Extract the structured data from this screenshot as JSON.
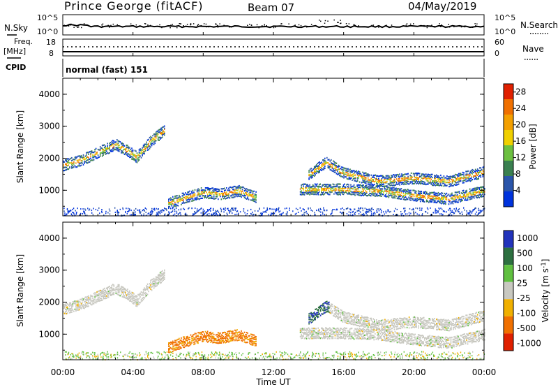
{
  "header": {
    "station": "Prince George (fitACF)",
    "beam": "Beam 07",
    "date": "04/May/2019"
  },
  "noise_panel": {
    "left_label": "N.Sky",
    "left_ticks": [
      "10^5",
      "10^0"
    ],
    "right_label": "N.Search",
    "right_ticks": [
      "10^5",
      "10^0"
    ]
  },
  "freq_panel": {
    "left_label_1": "Freq.",
    "left_label_2": "[MHz]",
    "left_ticks": [
      "18",
      "8"
    ],
    "right_label": "Nave",
    "right_ticks": [
      "60",
      "0"
    ]
  },
  "cpid": {
    "label": "CPID",
    "value": "normal (fast) 151"
  },
  "colors": {
    "power": [
      "#0033dd",
      "#2a55aa",
      "#3a8050",
      "#6cc040",
      "#f0d000",
      "#f4a000",
      "#f07000",
      "#e02000"
    ],
    "velocity_pos": [
      "#2233bb",
      "#2d7040",
      "#60c040"
    ],
    "velocity_zero": "#c8c8c0",
    "velocity_neg": [
      "#f0b000",
      "#f07000",
      "#e02000"
    ]
  },
  "chart_data": [
    {
      "type": "heatmap",
      "title": "",
      "xlabel": "",
      "ylabel": "Slant Range [km]",
      "xlim": [
        0,
        24
      ],
      "ylim": [
        200,
        4500
      ],
      "yticks": [
        "4000",
        "3000",
        "2000",
        "1000"
      ],
      "colorbar": {
        "label": "Power [dB]",
        "ticks": [
          "28",
          "24",
          "20",
          "16",
          "12",
          "8",
          "4"
        ],
        "range": [
          0,
          30
        ]
      },
      "echo_bands": [
        {
          "name": "band_a",
          "points": [
            [
              0.0,
              1800
            ],
            [
              1.0,
              1950
            ],
            [
              2.0,
              2200
            ],
            [
              3.0,
              2450
            ],
            [
              3.7,
              2250
            ],
            [
              4.2,
              2050
            ],
            [
              5.0,
              2550
            ],
            [
              5.8,
              2900
            ]
          ]
        },
        {
          "name": "band_b",
          "points": [
            [
              14.0,
              1500
            ],
            [
              15.0,
              1900
            ],
            [
              16.0,
              1550
            ],
            [
              18.0,
              1300
            ],
            [
              20.0,
              1400
            ],
            [
              22.0,
              1300
            ],
            [
              24.0,
              1600
            ]
          ]
        },
        {
          "name": "band_c",
          "points": [
            [
              6.0,
              600
            ],
            [
              7.0,
              800
            ],
            [
              8.0,
              950
            ],
            [
              9.0,
              900
            ],
            [
              10.0,
              1000
            ],
            [
              11.0,
              800
            ]
          ]
        },
        {
          "name": "band_d",
          "points": [
            [
              13.5,
              1050
            ],
            [
              16.0,
              1050
            ],
            [
              18.0,
              1000
            ],
            [
              20.0,
              850
            ],
            [
              22.0,
              750
            ],
            [
              24.0,
              1000
            ]
          ]
        }
      ],
      "near_range_km": 300
    },
    {
      "type": "heatmap",
      "title": "",
      "xlabel": "Time UT",
      "ylabel": "Slant Range [km]",
      "xlim": [
        0,
        24
      ],
      "ylim": [
        200,
        4500
      ],
      "xticks": [
        "00:00",
        "04:00",
        "08:00",
        "12:00",
        "16:00",
        "20:00",
        "00:00"
      ],
      "yticks": [
        "4000",
        "3000",
        "2000",
        "1000"
      ],
      "colorbar": {
        "label": "Velocity [m s^-1]",
        "ticks": [
          "1000",
          "500",
          "100",
          "25",
          "-25",
          "-100",
          "-500",
          "-1000"
        ]
      }
    }
  ]
}
